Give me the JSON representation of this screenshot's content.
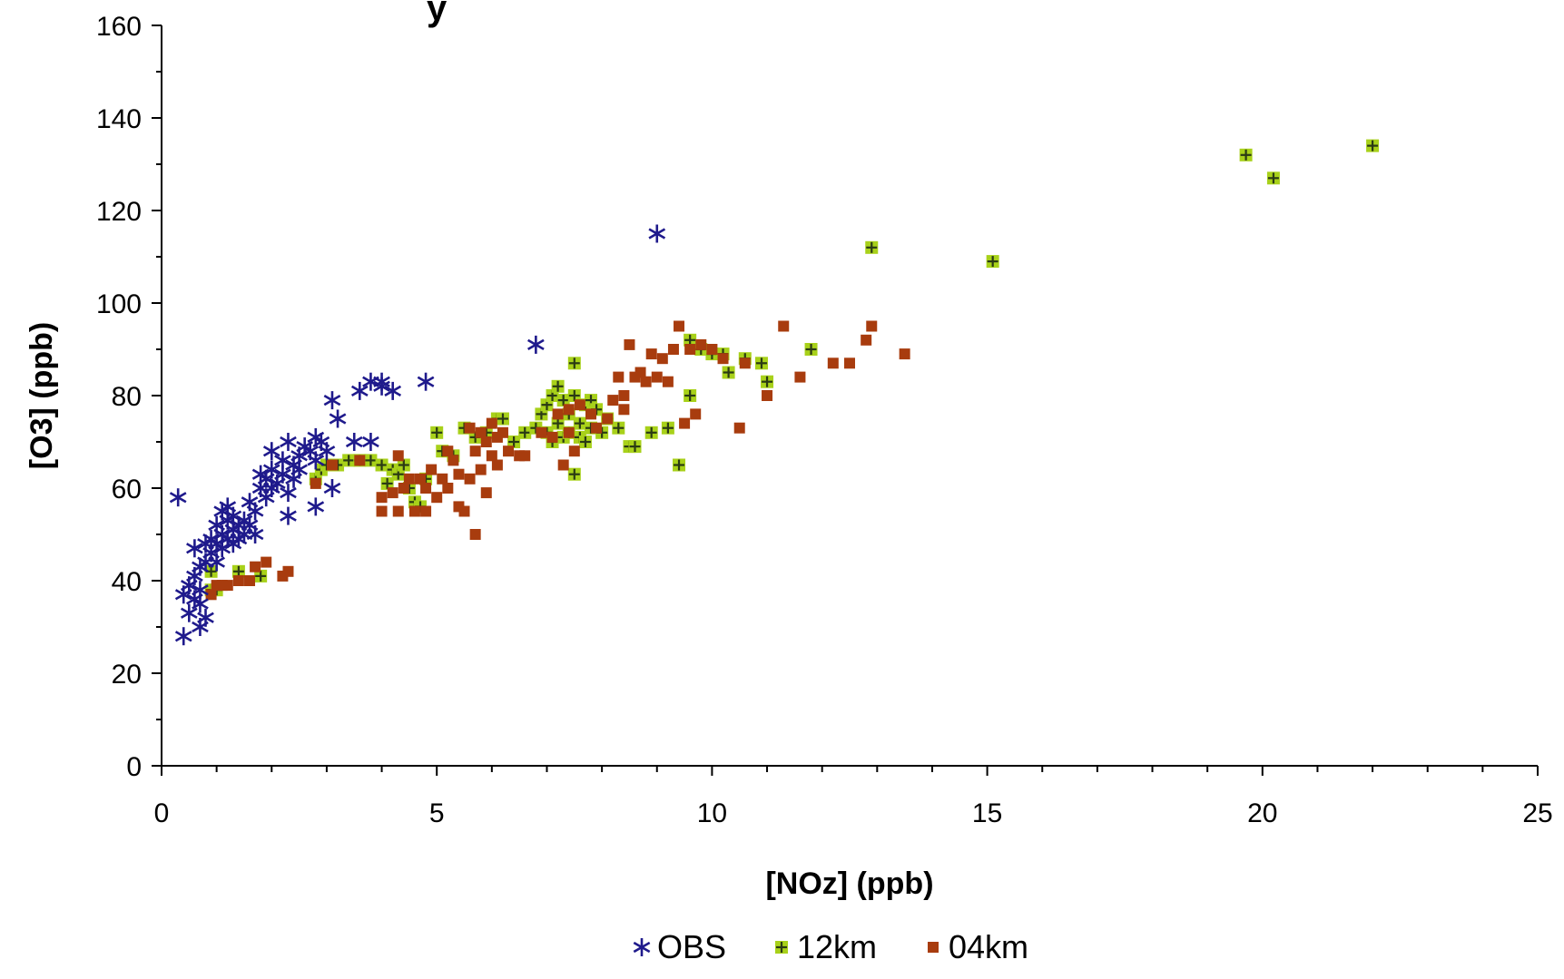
{
  "chart_data": {
    "type": "scatter",
    "title_fragment": "y",
    "xlabel": "[NOz] (ppb)",
    "ylabel": "[O3] (ppb)",
    "xlim": [
      0,
      25
    ],
    "ylim": [
      0,
      160
    ],
    "x_ticks": [
      "0",
      "5",
      "10",
      "15",
      "20",
      "25"
    ],
    "y_ticks": [
      "0",
      "20",
      "40",
      "60",
      "80",
      "100",
      "120",
      "140",
      "160"
    ],
    "grid": false,
    "legend_position": "bottom",
    "series": [
      {
        "name": "OBS",
        "marker": "asterisk",
        "color": "#1f1a8c",
        "points": [
          [
            0.3,
            58
          ],
          [
            0.4,
            28
          ],
          [
            0.4,
            37
          ],
          [
            0.5,
            33
          ],
          [
            0.5,
            39
          ],
          [
            0.6,
            36
          ],
          [
            0.6,
            41
          ],
          [
            0.6,
            47
          ],
          [
            0.7,
            30
          ],
          [
            0.7,
            35
          ],
          [
            0.7,
            38
          ],
          [
            0.7,
            43
          ],
          [
            0.8,
            32
          ],
          [
            0.8,
            44
          ],
          [
            0.8,
            48
          ],
          [
            0.9,
            46
          ],
          [
            0.9,
            49
          ],
          [
            1.0,
            44
          ],
          [
            1.0,
            48
          ],
          [
            1.0,
            52
          ],
          [
            1.1,
            47
          ],
          [
            1.1,
            50
          ],
          [
            1.1,
            55
          ],
          [
            1.2,
            49
          ],
          [
            1.2,
            53
          ],
          [
            1.2,
            56
          ],
          [
            1.3,
            48
          ],
          [
            1.3,
            51
          ],
          [
            1.3,
            54
          ],
          [
            1.4,
            49
          ],
          [
            1.4,
            52
          ],
          [
            1.5,
            50
          ],
          [
            1.5,
            53
          ],
          [
            1.6,
            52
          ],
          [
            1.6,
            57
          ],
          [
            1.7,
            55
          ],
          [
            1.7,
            50
          ],
          [
            1.8,
            60
          ],
          [
            1.8,
            63
          ],
          [
            1.9,
            58
          ],
          [
            1.9,
            62
          ],
          [
            2.0,
            60
          ],
          [
            2.0,
            64
          ],
          [
            2.0,
            68
          ],
          [
            2.1,
            61
          ],
          [
            2.2,
            63
          ],
          [
            2.2,
            66
          ],
          [
            2.3,
            70
          ],
          [
            2.3,
            59
          ],
          [
            2.3,
            54
          ],
          [
            2.4,
            65
          ],
          [
            2.4,
            62
          ],
          [
            2.5,
            67
          ],
          [
            2.5,
            64
          ],
          [
            2.6,
            69
          ],
          [
            2.7,
            68
          ],
          [
            2.8,
            71
          ],
          [
            2.8,
            66
          ],
          [
            2.8,
            56
          ],
          [
            2.9,
            70
          ],
          [
            3.0,
            68
          ],
          [
            3.1,
            79
          ],
          [
            3.1,
            60
          ],
          [
            3.2,
            75
          ],
          [
            3.5,
            70
          ],
          [
            3.6,
            81
          ],
          [
            3.8,
            70
          ],
          [
            3.8,
            83
          ],
          [
            4.0,
            82
          ],
          [
            4.0,
            83
          ],
          [
            4.2,
            81
          ],
          [
            4.8,
            83
          ],
          [
            6.8,
            91
          ],
          [
            9.0,
            115
          ]
        ]
      },
      {
        "name": "12km",
        "marker": "plus",
        "color": "#a8d11a",
        "points": [
          [
            0.9,
            38
          ],
          [
            0.9,
            42
          ],
          [
            1.0,
            38
          ],
          [
            1.4,
            42
          ],
          [
            1.8,
            41
          ],
          [
            2.8,
            62
          ],
          [
            2.9,
            64
          ],
          [
            3.0,
            65
          ],
          [
            3.2,
            65
          ],
          [
            3.4,
            66
          ],
          [
            3.6,
            66
          ],
          [
            3.8,
            66
          ],
          [
            4.0,
            65
          ],
          [
            4.1,
            61
          ],
          [
            4.2,
            64
          ],
          [
            4.3,
            63
          ],
          [
            4.4,
            65
          ],
          [
            4.5,
            60
          ],
          [
            4.6,
            57
          ],
          [
            4.7,
            56
          ],
          [
            4.8,
            62
          ],
          [
            5.0,
            72
          ],
          [
            5.1,
            68
          ],
          [
            5.3,
            67
          ],
          [
            5.5,
            73
          ],
          [
            5.7,
            71
          ],
          [
            5.9,
            72
          ],
          [
            6.1,
            75
          ],
          [
            6.2,
            75
          ],
          [
            6.4,
            70
          ],
          [
            6.6,
            72
          ],
          [
            6.8,
            73
          ],
          [
            6.9,
            76
          ],
          [
            7.0,
            78
          ],
          [
            7.0,
            72
          ],
          [
            7.1,
            80
          ],
          [
            7.1,
            70
          ],
          [
            7.2,
            82
          ],
          [
            7.2,
            74
          ],
          [
            7.3,
            79
          ],
          [
            7.3,
            71
          ],
          [
            7.4,
            76
          ],
          [
            7.4,
            72
          ],
          [
            7.5,
            87
          ],
          [
            7.5,
            80
          ],
          [
            7.5,
            63
          ],
          [
            7.6,
            74
          ],
          [
            7.6,
            71
          ],
          [
            7.7,
            78
          ],
          [
            7.7,
            70
          ],
          [
            7.8,
            79
          ],
          [
            7.8,
            73
          ],
          [
            7.9,
            77
          ],
          [
            8.0,
            72
          ],
          [
            8.1,
            75
          ],
          [
            8.3,
            73
          ],
          [
            8.5,
            69
          ],
          [
            8.6,
            69
          ],
          [
            8.9,
            72
          ],
          [
            9.2,
            73
          ],
          [
            9.4,
            65
          ],
          [
            9.6,
            80
          ],
          [
            9.6,
            92
          ],
          [
            9.8,
            90
          ],
          [
            10.0,
            89
          ],
          [
            10.2,
            89
          ],
          [
            10.3,
            85
          ],
          [
            10.6,
            88
          ],
          [
            10.9,
            87
          ],
          [
            11.0,
            83
          ],
          [
            11.8,
            90
          ],
          [
            12.9,
            112
          ],
          [
            15.1,
            109
          ],
          [
            19.7,
            132
          ],
          [
            20.2,
            127
          ],
          [
            22.0,
            134
          ]
        ]
      },
      {
        "name": "04km",
        "marker": "square",
        "color": "#a83c0e",
        "points": [
          [
            0.9,
            37
          ],
          [
            1.0,
            39
          ],
          [
            1.1,
            39
          ],
          [
            1.2,
            39
          ],
          [
            1.4,
            40
          ],
          [
            1.6,
            40
          ],
          [
            1.7,
            43
          ],
          [
            1.9,
            44
          ],
          [
            2.2,
            41
          ],
          [
            2.3,
            42
          ],
          [
            2.8,
            61
          ],
          [
            3.1,
            65
          ],
          [
            3.6,
            66
          ],
          [
            4.0,
            55
          ],
          [
            4.0,
            58
          ],
          [
            4.2,
            59
          ],
          [
            4.3,
            67
          ],
          [
            4.3,
            55
          ],
          [
            4.4,
            60
          ],
          [
            4.5,
            62
          ],
          [
            4.6,
            55
          ],
          [
            4.7,
            62
          ],
          [
            4.8,
            55
          ],
          [
            4.8,
            60
          ],
          [
            4.9,
            64
          ],
          [
            5.0,
            58
          ],
          [
            5.1,
            62
          ],
          [
            5.2,
            60
          ],
          [
            5.2,
            68
          ],
          [
            5.3,
            66
          ],
          [
            5.4,
            63
          ],
          [
            5.4,
            56
          ],
          [
            5.5,
            55
          ],
          [
            5.6,
            73
          ],
          [
            5.6,
            62
          ],
          [
            5.7,
            68
          ],
          [
            5.7,
            50
          ],
          [
            5.8,
            72
          ],
          [
            5.8,
            64
          ],
          [
            5.9,
            70
          ],
          [
            5.9,
            59
          ],
          [
            6.0,
            74
          ],
          [
            6.0,
            67
          ],
          [
            6.1,
            71
          ],
          [
            6.1,
            65
          ],
          [
            6.2,
            72
          ],
          [
            6.3,
            68
          ],
          [
            6.5,
            67
          ],
          [
            6.9,
            72
          ],
          [
            7.1,
            71
          ],
          [
            7.2,
            76
          ],
          [
            7.3,
            65
          ],
          [
            7.4,
            72
          ],
          [
            7.4,
            77
          ],
          [
            7.5,
            68
          ],
          [
            7.6,
            78
          ],
          [
            7.8,
            76
          ],
          [
            7.9,
            73
          ],
          [
            8.1,
            75
          ],
          [
            8.2,
            79
          ],
          [
            8.3,
            84
          ],
          [
            8.4,
            80
          ],
          [
            8.5,
            91
          ],
          [
            8.6,
            84
          ],
          [
            8.7,
            85
          ],
          [
            8.8,
            83
          ],
          [
            8.9,
            89
          ],
          [
            9.0,
            84
          ],
          [
            9.2,
            83
          ],
          [
            9.3,
            90
          ],
          [
            9.4,
            95
          ],
          [
            9.5,
            74
          ],
          [
            9.6,
            90
          ],
          [
            9.7,
            76
          ],
          [
            9.8,
            91
          ],
          [
            10.0,
            90
          ],
          [
            10.2,
            88
          ],
          [
            10.5,
            73
          ],
          [
            10.6,
            87
          ],
          [
            11.0,
            80
          ],
          [
            11.3,
            95
          ],
          [
            11.6,
            84
          ],
          [
            12.2,
            87
          ],
          [
            12.5,
            87
          ],
          [
            12.9,
            95
          ],
          [
            13.5,
            89
          ],
          [
            9.1,
            88
          ],
          [
            8.4,
            77
          ],
          [
            6.6,
            67
          ],
          [
            12.8,
            92
          ]
        ]
      }
    ]
  }
}
